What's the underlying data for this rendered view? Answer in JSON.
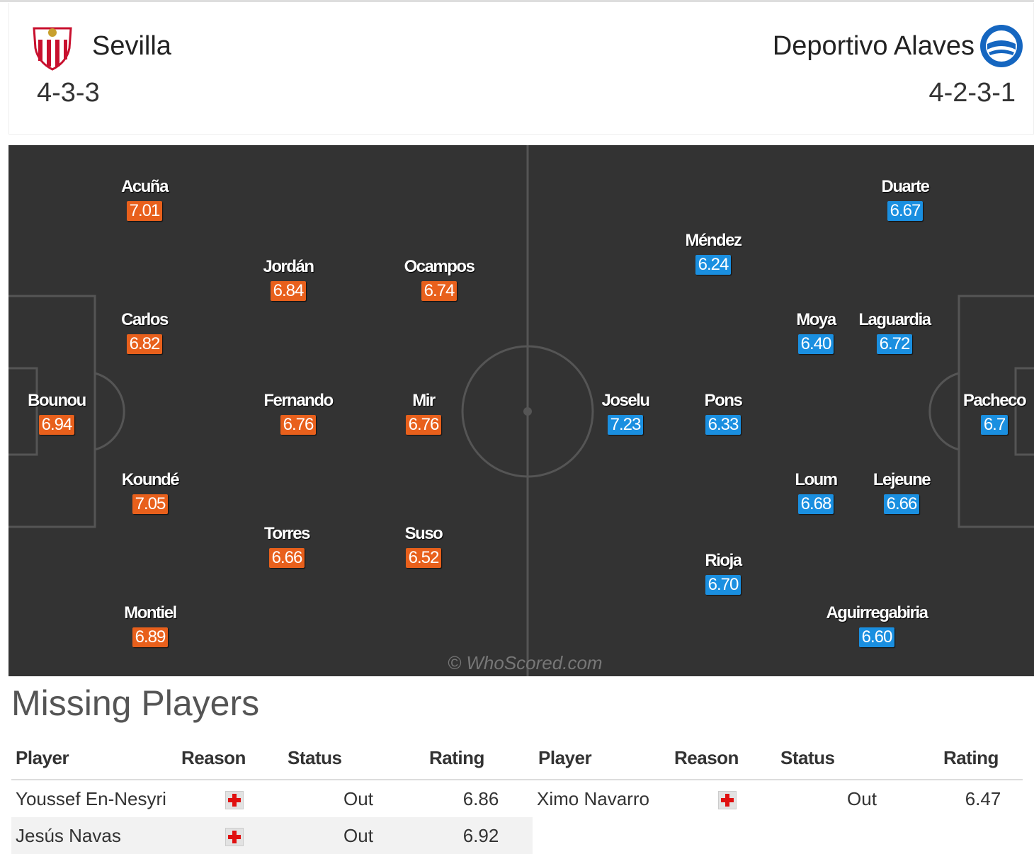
{
  "header": {
    "home": {
      "name": "Sevilla",
      "formation": "4-3-3"
    },
    "away": {
      "name": "Deportivo Alaves",
      "formation": "4-2-3-1"
    }
  },
  "pitch": {
    "watermark": "© WhoScored.com",
    "home_players": [
      {
        "name": "Acuña",
        "rating": "7.01"
      },
      {
        "name": "Carlos",
        "rating": "6.82"
      },
      {
        "name": "Bounou",
        "rating": "6.94"
      },
      {
        "name": "Koundé",
        "rating": "7.05"
      },
      {
        "name": "Montiel",
        "rating": "6.89"
      },
      {
        "name": "Jordán",
        "rating": "6.84"
      },
      {
        "name": "Fernando",
        "rating": "6.76"
      },
      {
        "name": "Torres",
        "rating": "6.66"
      },
      {
        "name": "Ocampos",
        "rating": "6.74"
      },
      {
        "name": "Mir",
        "rating": "6.76"
      },
      {
        "name": "Suso",
        "rating": "6.52"
      }
    ],
    "away_players": [
      {
        "name": "Duarte",
        "rating": "6.67"
      },
      {
        "name": "Méndez",
        "rating": "6.24"
      },
      {
        "name": "Moya",
        "rating": "6.40"
      },
      {
        "name": "Laguardia",
        "rating": "6.72"
      },
      {
        "name": "Joselu",
        "rating": "7.23"
      },
      {
        "name": "Pons",
        "rating": "6.33"
      },
      {
        "name": "Pacheco",
        "rating": "6.7"
      },
      {
        "name": "Loum",
        "rating": "6.68"
      },
      {
        "name": "Lejeune",
        "rating": "6.66"
      },
      {
        "name": "Rioja",
        "rating": "6.70"
      },
      {
        "name": "Aguirregabiria",
        "rating": "6.60"
      }
    ]
  },
  "missing": {
    "title": "Missing Players",
    "columns": {
      "player": "Player",
      "reason": "Reason",
      "status": "Status",
      "rating": "Rating"
    },
    "home": [
      {
        "player": "Youssef En-Nesyri",
        "reason_icon": "injury-icon",
        "status": "Out",
        "rating": "6.86"
      },
      {
        "player": "Jesús Navas",
        "reason_icon": "injury-icon",
        "status": "Out",
        "rating": "6.92"
      }
    ],
    "away": [
      {
        "player": "Ximo Navarro",
        "reason_icon": "injury-icon",
        "status": "Out",
        "rating": "6.47"
      }
    ]
  },
  "colors": {
    "home_rating": "#e8601c",
    "away_rating": "#1a8fe0",
    "pitch": "#333333",
    "injury": "#e01010"
  }
}
